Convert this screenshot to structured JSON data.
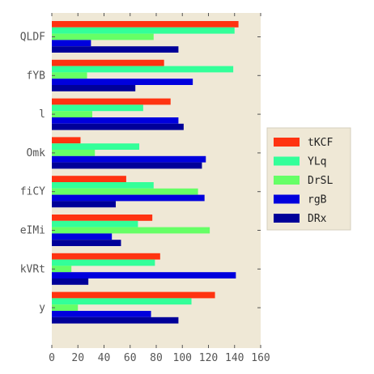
{
  "chart_data": {
    "type": "bar",
    "orientation": "horizontal",
    "categories": [
      "QLDF",
      "fYB",
      "l",
      "Omk",
      "fiCY",
      "eIMi",
      "kVRt",
      "y"
    ],
    "series": [
      {
        "name": "tKCF",
        "color": "#ff3311",
        "values": [
          143,
          86,
          91,
          22,
          57,
          77,
          83,
          125
        ]
      },
      {
        "name": "YLq",
        "color": "#33ff99",
        "values": [
          140,
          139,
          70,
          67,
          78,
          66,
          79,
          107
        ]
      },
      {
        "name": "DrSL",
        "color": "#66ff66",
        "values": [
          78,
          27,
          31,
          33,
          112,
          121,
          15,
          20
        ]
      },
      {
        "name": "rgB",
        "color": "#0000dd",
        "values": [
          30,
          108,
          97,
          118,
          117,
          46,
          141,
          76
        ]
      },
      {
        "name": "DRx",
        "color": "#000099",
        "values": [
          97,
          64,
          101,
          115,
          49,
          53,
          28,
          97
        ]
      }
    ],
    "xlim": [
      0,
      160
    ],
    "xticks": [
      0,
      20,
      40,
      60,
      80,
      100,
      120,
      140,
      160
    ],
    "grid": false,
    "legend_position": "right",
    "background": "#efe8d6"
  }
}
